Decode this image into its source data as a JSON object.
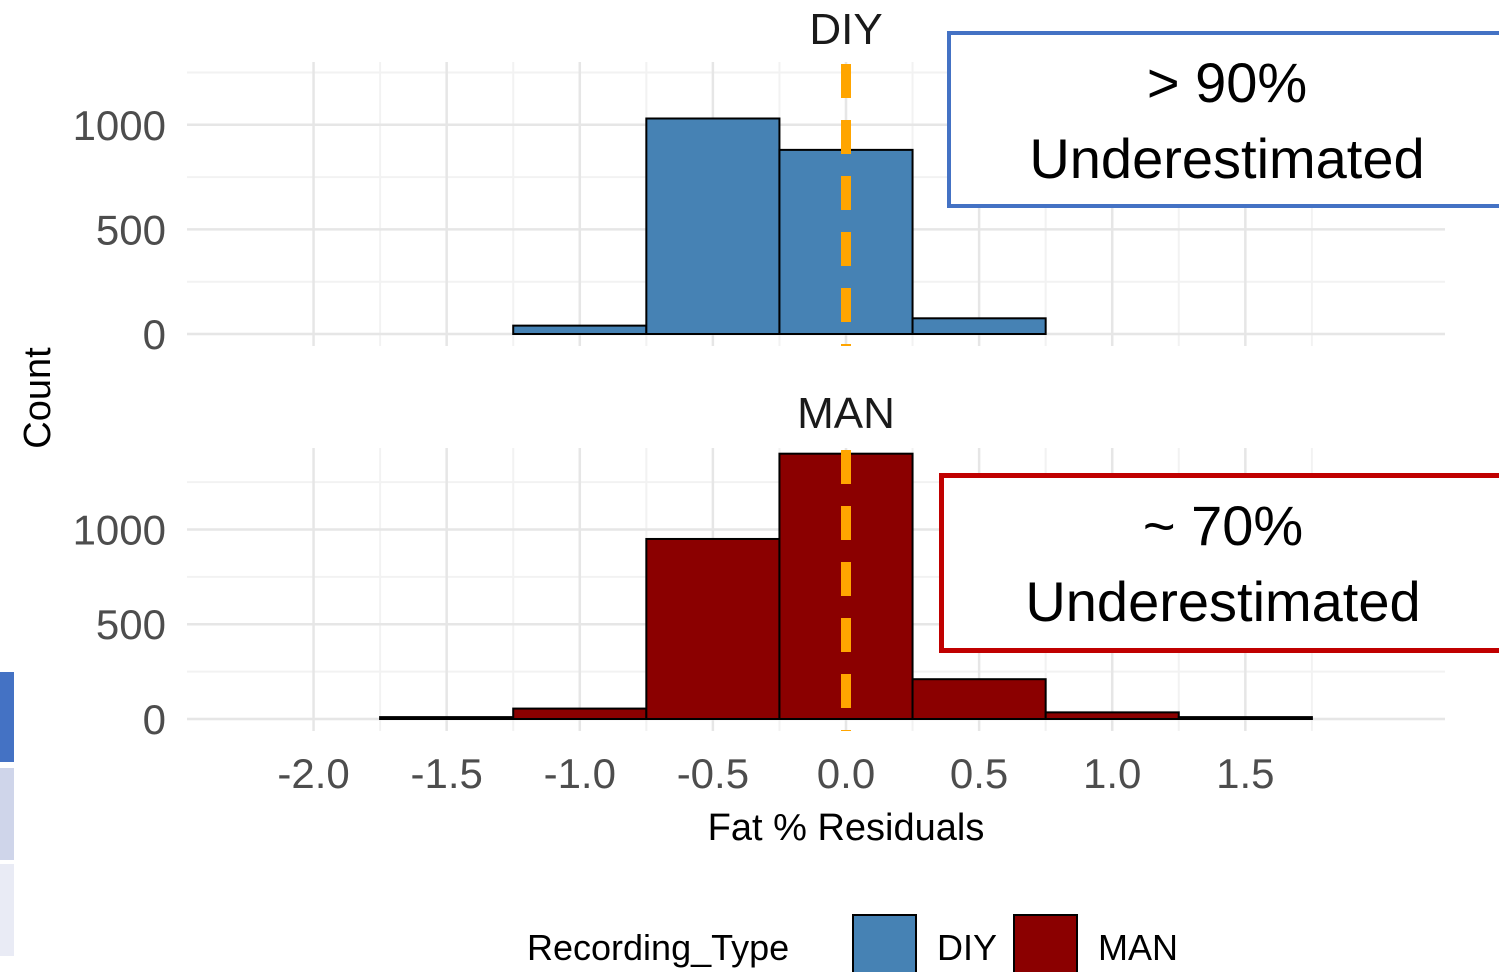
{
  "chart_data": {
    "type": "bar",
    "xlabel": "Fat % Residuals",
    "ylabel": "Count",
    "x_ticks": [
      -2.0,
      -1.5,
      -1.0,
      -0.5,
      0.0,
      0.5,
      1.0,
      1.5
    ],
    "x_tick_labels": [
      "-2.0",
      "-1.5",
      "-1.0",
      "-0.5",
      "0.0",
      "0.5",
      "1.0",
      "1.5"
    ],
    "xlim": [
      -2.25,
      2.25
    ],
    "y_ticks": [
      0,
      500,
      1000
    ],
    "y_tick_labels": [
      "0",
      "500",
      "1000"
    ],
    "bin_edges": [
      -2.25,
      -1.75,
      -1.25,
      -0.75,
      -0.25,
      0.25,
      0.75,
      1.25,
      1.75,
      2.25
    ],
    "reference_line": {
      "x": 0.0,
      "style": "dashed",
      "color": "#FFA500"
    },
    "grid": true,
    "legend": {
      "title": "Recording_Type",
      "position": "bottom",
      "entries": [
        {
          "label": "DIY",
          "color": "#4682B4"
        },
        {
          "label": "MAN",
          "color": "#8B0000"
        }
      ]
    },
    "facets": [
      {
        "title": "DIY",
        "color": "#4682B4",
        "ylim": [
          0,
          1300
        ],
        "values": [
          0,
          0,
          40,
          1030,
          880,
          75,
          0,
          0,
          0
        ]
      },
      {
        "title": "MAN",
        "color": "#8B0000",
        "ylim": [
          0,
          1430
        ],
        "values": [
          0,
          10,
          55,
          950,
          1400,
          210,
          35,
          10,
          0
        ]
      }
    ]
  },
  "annotations": [
    {
      "line1": "> 90%",
      "line2": "Underestimated",
      "border_color": "#4472C4"
    },
    {
      "line1": "~ 70%",
      "line2": "Underestimated",
      "border_color": "#C00000"
    }
  ],
  "side_strip_colors": [
    "#4472C4",
    "#CFD5EA",
    "#E9EBF5"
  ]
}
